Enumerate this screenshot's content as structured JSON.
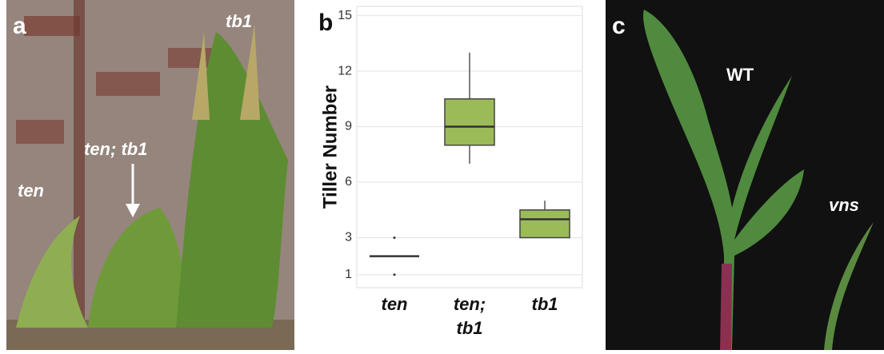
{
  "panels": {
    "a": {
      "label": "a",
      "annotations": [
        "ten",
        "ten; tb1",
        "tb1"
      ]
    },
    "c": {
      "label": "c",
      "annotations": [
        "WT",
        "vns"
      ]
    }
  },
  "chart_data": {
    "type": "box",
    "panel_label": "b",
    "ylabel": "Tiller Number",
    "categories": [
      "ten",
      "ten; tb1",
      "tb1"
    ],
    "boxes": [
      {
        "min": 2,
        "q1": 2,
        "median": 2,
        "q3": 2,
        "max": 2,
        "outliers": [
          1,
          3
        ]
      },
      {
        "min": 7,
        "q1": 8,
        "median": 9,
        "q3": 10.5,
        "max": 13,
        "outliers": []
      },
      {
        "min": 3,
        "q1": 3,
        "median": 4,
        "q3": 4.5,
        "max": 5,
        "outliers": []
      }
    ],
    "color": "#9bbb59",
    "ylim": [
      0.3,
      15.5
    ],
    "yticks": [
      1,
      3,
      6,
      9,
      12,
      15
    ],
    "grid": true
  }
}
